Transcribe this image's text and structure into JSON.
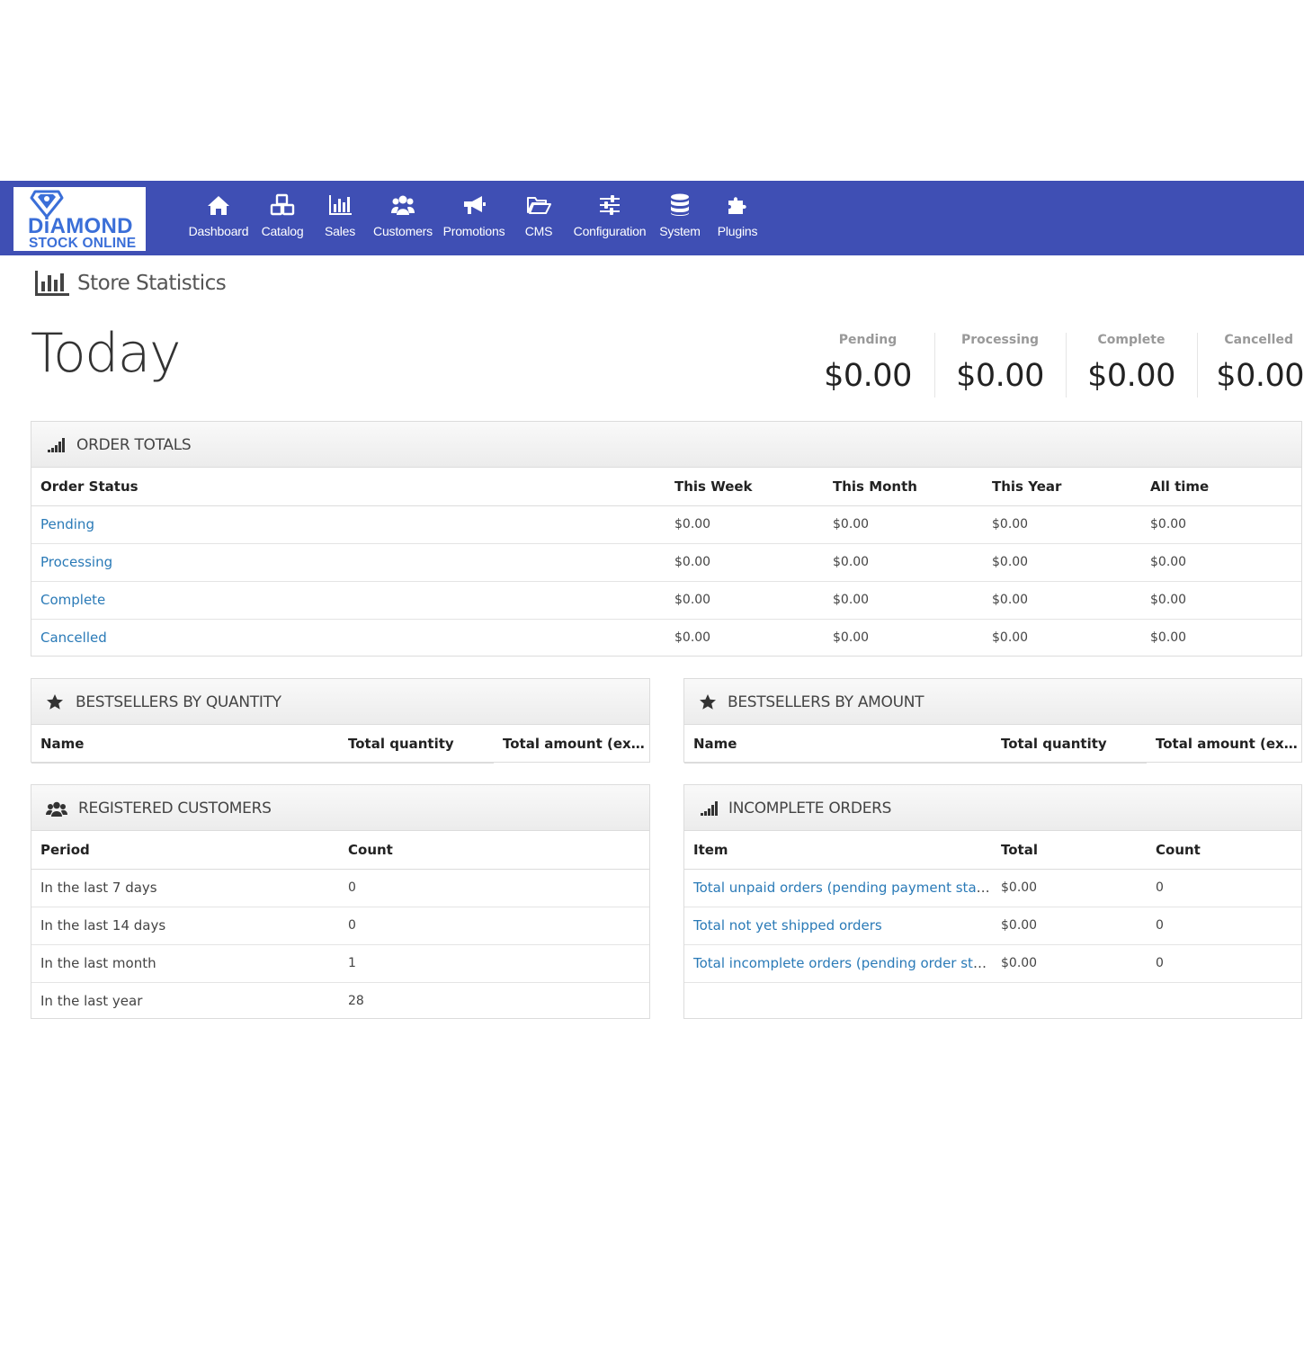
{
  "brand": {
    "line1": "DiAMOND",
    "line2": "STOCK ONLINE"
  },
  "nav": [
    {
      "label": "Dashboard",
      "icon": "home-icon"
    },
    {
      "label": "Catalog",
      "icon": "cubes-icon"
    },
    {
      "label": "Sales",
      "icon": "bar-chart-icon"
    },
    {
      "label": "Customers",
      "icon": "users-icon"
    },
    {
      "label": "Promotions",
      "icon": "bullhorn-icon"
    },
    {
      "label": "CMS",
      "icon": "folder-open-icon"
    },
    {
      "label": "Configuration",
      "icon": "sliders-icon"
    },
    {
      "label": "System",
      "icon": "database-icon"
    },
    {
      "label": "Plugins",
      "icon": "puzzle-icon"
    }
  ],
  "page": {
    "title": "Store Statistics",
    "period": "Today"
  },
  "stats": [
    {
      "label": "Pending",
      "value": "$0.00"
    },
    {
      "label": "Processing",
      "value": "$0.00"
    },
    {
      "label": "Complete",
      "value": "$0.00"
    },
    {
      "label": "Cancelled",
      "value": "$0.00"
    }
  ],
  "order_totals": {
    "title": "ORDER TOTALS",
    "columns": [
      "Order Status",
      "This Week",
      "This Month",
      "This Year",
      "All time"
    ],
    "rows": [
      {
        "status": "Pending",
        "week": "$0.00",
        "month": "$0.00",
        "year": "$0.00",
        "all": "$0.00"
      },
      {
        "status": "Processing",
        "week": "$0.00",
        "month": "$0.00",
        "year": "$0.00",
        "all": "$0.00"
      },
      {
        "status": "Complete",
        "week": "$0.00",
        "month": "$0.00",
        "year": "$0.00",
        "all": "$0.00"
      },
      {
        "status": "Cancelled",
        "week": "$0.00",
        "month": "$0.00",
        "year": "$0.00",
        "all": "$0.00"
      }
    ]
  },
  "bestsellers_qty": {
    "title": "BESTSELLERS BY QUANTITY",
    "columns": [
      "Name",
      "Total quantity",
      "Total amount (exc..."
    ]
  },
  "bestsellers_amount": {
    "title": "BESTSELLERS BY AMOUNT",
    "columns": [
      "Name",
      "Total quantity",
      "Total amount (exc..."
    ]
  },
  "registered_customers": {
    "title": "REGISTERED CUSTOMERS",
    "columns": [
      "Period",
      "Count"
    ],
    "rows": [
      {
        "period": "In the last 7 days",
        "count": "0"
      },
      {
        "period": "In the last 14 days",
        "count": "0"
      },
      {
        "period": "In the last month",
        "count": "1"
      },
      {
        "period": "In the last year",
        "count": "28"
      }
    ]
  },
  "incomplete_orders": {
    "title": "INCOMPLETE ORDERS",
    "columns": [
      "Item",
      "Total",
      "Count"
    ],
    "rows": [
      {
        "item": "Total unpaid orders (pending payment status)",
        "total": "$0.00",
        "count": "0"
      },
      {
        "item": "Total not yet shipped orders",
        "total": "$0.00",
        "count": "0"
      },
      {
        "item": "Total incomplete orders (pending order stat...",
        "total": "$0.00",
        "count": "0"
      }
    ]
  },
  "colors": {
    "navbar": "#3f4fb4",
    "link": "#2a7ab7",
    "logo": "#3b6fd8"
  }
}
